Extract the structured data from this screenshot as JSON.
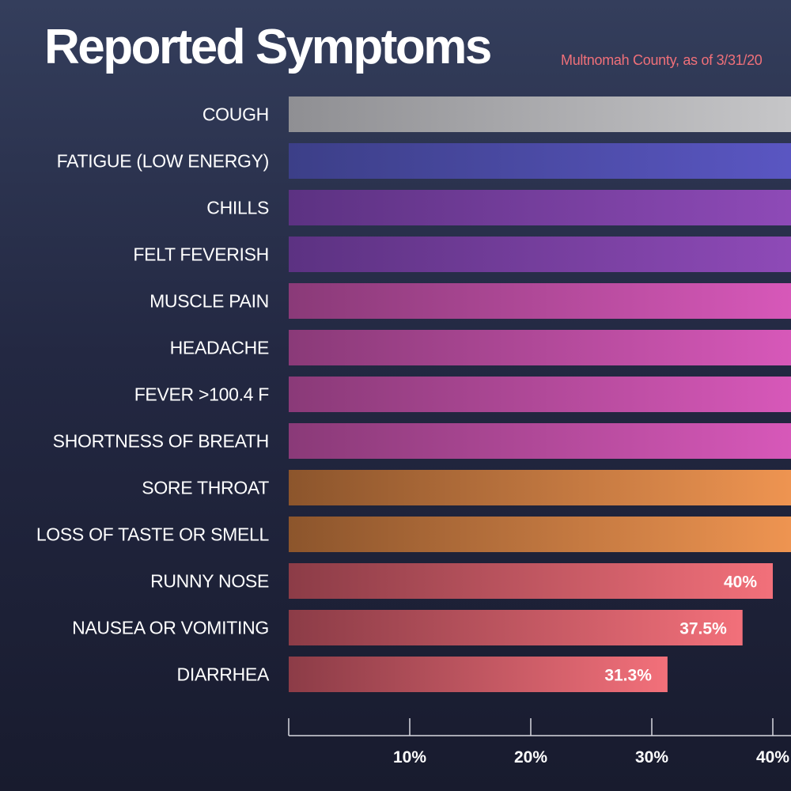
{
  "chart_data": {
    "type": "bar",
    "orientation": "horizontal",
    "title": "Reported Symptoms",
    "subtitle": "Multnomah County, as of 3/31/20",
    "xlabel": "",
    "ylabel": "",
    "xlim": [
      0,
      40
    ],
    "grid": false,
    "legend": "none",
    "x_ticks": [
      {
        "value": 10,
        "label": "10%"
      },
      {
        "value": 20,
        "label": "20%"
      },
      {
        "value": 30,
        "label": "30%"
      },
      {
        "value": 40,
        "label": "40%"
      }
    ],
    "categories": [
      "COUGH",
      "FATIGUE (LOW ENERGY)",
      "CHILLS",
      "FELT FEVERISH",
      "MUSCLE PAIN",
      "HEADACHE",
      "FEVER >100.4 F",
      "SHORTNESS OF BREATH",
      "SORE THROAT",
      "LOSS OF TASTE OR SMELL",
      "RUNNY NOSE",
      "NAUSEA OR VOMITING",
      "DIARRHEA"
    ],
    "values": [
      null,
      null,
      null,
      null,
      null,
      null,
      null,
      null,
      null,
      null,
      40,
      37.5,
      31.3
    ],
    "value_labels": [
      "",
      "",
      "",
      "",
      "",
      "",
      "",
      "",
      "",
      "",
      "40%",
      "37.5%",
      "31.3%"
    ],
    "note_values": "Bars for the first ten categories extend beyond the 40% axis edge; their values are not shown.",
    "bar_colors": [
      [
        "#8f8f93",
        "#c6c6c8"
      ],
      [
        "#3c3f88",
        "#5a56c2"
      ],
      [
        "#5c3282",
        "#8e4ab7"
      ],
      [
        "#5c3282",
        "#8e4ab7"
      ],
      [
        "#8a3a78",
        "#d758b9"
      ],
      [
        "#8a3a78",
        "#d758b9"
      ],
      [
        "#8a3a78",
        "#d758b9"
      ],
      [
        "#8a3a78",
        "#d758b9"
      ],
      [
        "#8c552c",
        "#ee9451"
      ],
      [
        "#8c552c",
        "#ee9451"
      ],
      [
        "#8c3c47",
        "#f2707a"
      ],
      [
        "#8c3c47",
        "#f2707a"
      ],
      [
        "#8c3c47",
        "#f2707a"
      ]
    ]
  }
}
